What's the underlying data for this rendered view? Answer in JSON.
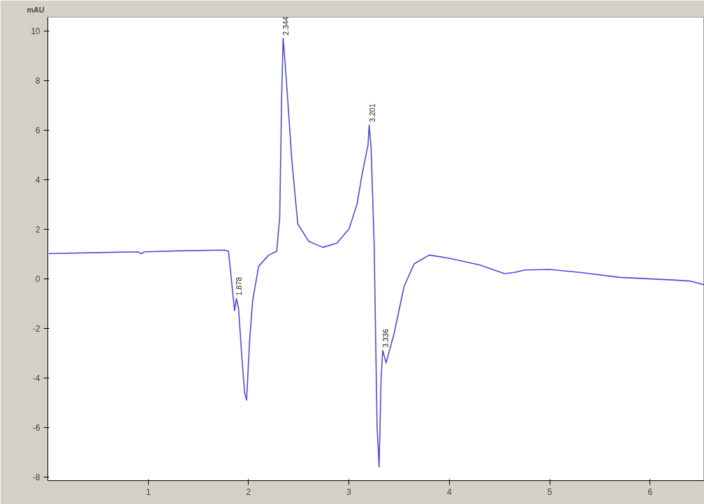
{
  "chart_data": {
    "type": "line",
    "ylabel": "mAU",
    "x": [
      0.01,
      0.5,
      0.9,
      0.93,
      0.96,
      1.3,
      1.76,
      1.8,
      1.83,
      1.85,
      1.86,
      1.878,
      1.9,
      1.93,
      1.96,
      1.98,
      2.01,
      2.04,
      2.1,
      2.2,
      2.28,
      2.31,
      2.33,
      2.344,
      2.36,
      2.39,
      2.43,
      2.49,
      2.6,
      2.74,
      2.88,
      3.0,
      3.08,
      3.13,
      3.17,
      3.19,
      3.201,
      3.22,
      3.25,
      3.28,
      3.3,
      3.32,
      3.336,
      3.37,
      3.45,
      3.55,
      3.65,
      3.8,
      4.0,
      4.3,
      4.55,
      4.65,
      4.75,
      5.0,
      5.3,
      5.7,
      6.2,
      6.4,
      6.54
    ],
    "series": [
      {
        "color": "#4b4bdc",
        "values": [
          1.01,
          1.05,
          1.08,
          1.0,
          1.08,
          1.12,
          1.15,
          1.1,
          -0.1,
          -0.9,
          -1.3,
          -0.8,
          -1.2,
          -3.0,
          -4.6,
          -4.9,
          -2.5,
          -0.9,
          0.5,
          0.95,
          1.1,
          2.5,
          7.5,
          9.7,
          8.9,
          7.2,
          4.8,
          2.2,
          1.5,
          1.26,
          1.43,
          2.0,
          3.0,
          4.2,
          5.0,
          5.4,
          6.2,
          5.3,
          1.5,
          -6.0,
          -7.6,
          -4.0,
          -2.9,
          -3.4,
          -2.2,
          -0.3,
          0.6,
          0.95,
          0.82,
          0.55,
          0.2,
          0.25,
          0.35,
          0.37,
          0.25,
          0.05,
          -0.05,
          -0.1,
          -0.25
        ]
      }
    ],
    "xlim": [
      0,
      6.54
    ],
    "ylim": [
      -8.15,
      10.55
    ],
    "xticks": [
      1,
      2,
      3,
      4,
      5,
      6
    ],
    "yticks": [
      -8,
      -6,
      -4,
      -2,
      0,
      2,
      4,
      6,
      8,
      10
    ],
    "grid": false,
    "annotations": [
      {
        "text": "1.878",
        "x": 1.878,
        "y": -0.8
      },
      {
        "text": "2.344",
        "x": 2.344,
        "y": 9.7
      },
      {
        "text": "3.201",
        "x": 3.201,
        "y": 6.2
      },
      {
        "text": "3.336",
        "x": 3.336,
        "y": -2.9
      }
    ]
  }
}
